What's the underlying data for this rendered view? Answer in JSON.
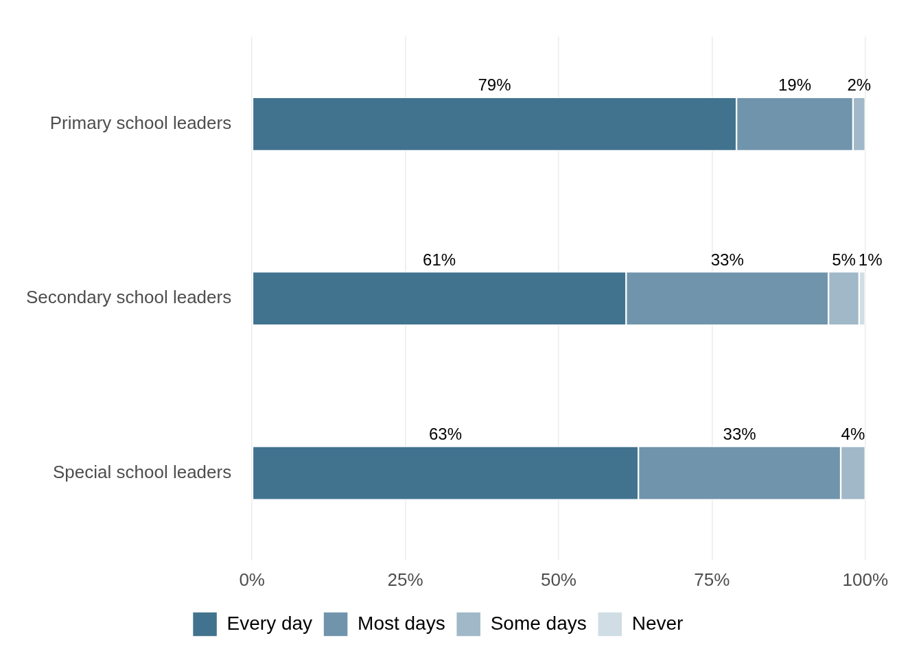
{
  "chart_data": {
    "type": "bar",
    "orientation": "horizontal",
    "stacked": true,
    "categories": [
      "Primary school leaders",
      "Secondary school leaders",
      "Special school leaders"
    ],
    "series": [
      {
        "name": "Every day",
        "color": "#41738f",
        "values": [
          79,
          61,
          63
        ],
        "value_labels": [
          "79%",
          "61%",
          "63%"
        ]
      },
      {
        "name": "Most days",
        "color": "#7094ab",
        "values": [
          19,
          33,
          33
        ],
        "value_labels": [
          "19%",
          "33%",
          "33%"
        ]
      },
      {
        "name": "Some days",
        "color": "#a0b8c8",
        "values": [
          2,
          5,
          4
        ],
        "value_labels": [
          "2%",
          "5%",
          "4%"
        ]
      },
      {
        "name": "Never",
        "color": "#d0dde5",
        "values": [
          null,
          1,
          null
        ],
        "value_labels": [
          null,
          "1%",
          null
        ]
      }
    ],
    "xlim": [
      0,
      100
    ],
    "xticks": [
      {
        "value": 0,
        "label": "0%"
      },
      {
        "value": 25,
        "label": "25%"
      },
      {
        "value": 50,
        "label": "50%"
      },
      {
        "value": 75,
        "label": "75%"
      },
      {
        "value": 100,
        "label": "100%"
      }
    ],
    "grid": "x",
    "legend": "bottom"
  }
}
